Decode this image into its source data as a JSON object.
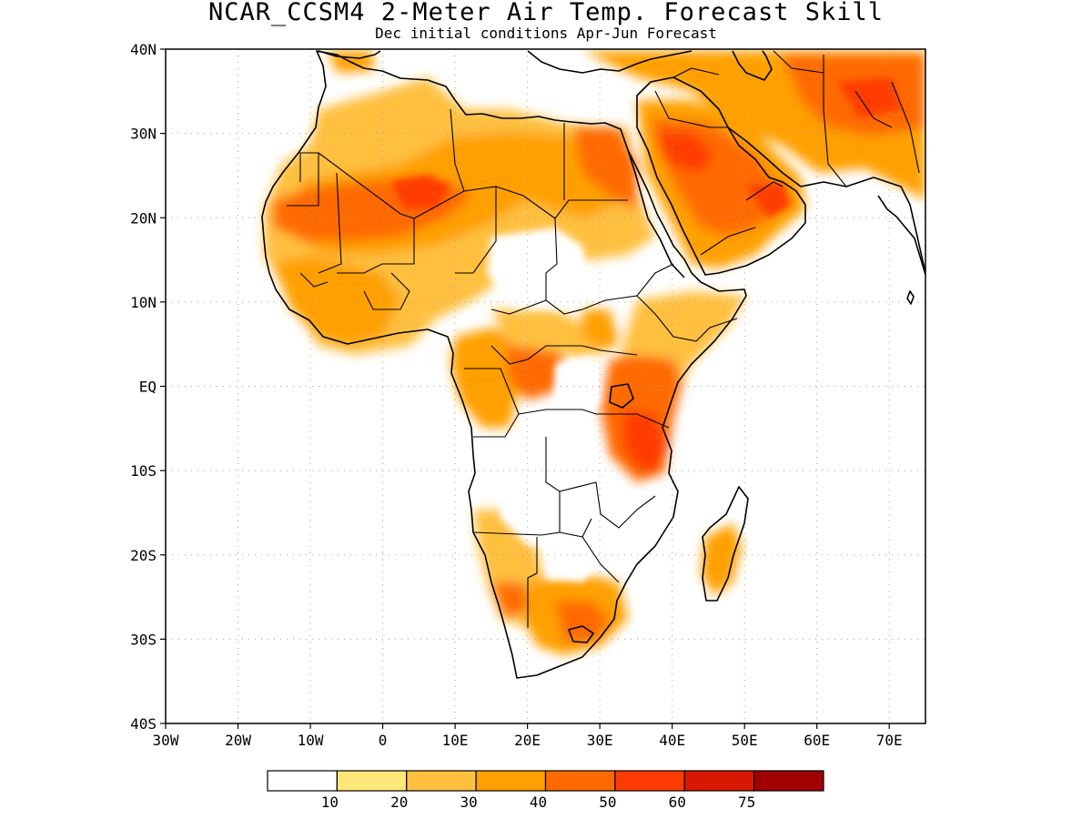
{
  "title": "NCAR_CCSM4 2-Meter Air Temp. Forecast Skill",
  "subtitle": "Dec initial conditions  Apr-Jun Forecast",
  "map": {
    "lon_range": [
      -30,
      75
    ],
    "lat_range": [
      -40,
      40
    ],
    "lat_labels": [
      "40N",
      "30N",
      "20N",
      "10N",
      "EQ",
      "10S",
      "20S",
      "30S",
      "40S"
    ],
    "lon_labels": [
      "30W",
      "20W",
      "10W",
      "0",
      "10E",
      "20E",
      "30E",
      "40E",
      "50E",
      "60E",
      "70E"
    ],
    "grid": "dotted"
  },
  "colorbar": {
    "colors": [
      "#ffffff",
      "#ffe87a",
      "#ffc040",
      "#ffa000",
      "#ff6a00",
      "#ff3c00",
      "#d81800",
      "#a00000"
    ],
    "labels": [
      "10",
      "20",
      "30",
      "40",
      "50",
      "60",
      "75"
    ]
  }
}
